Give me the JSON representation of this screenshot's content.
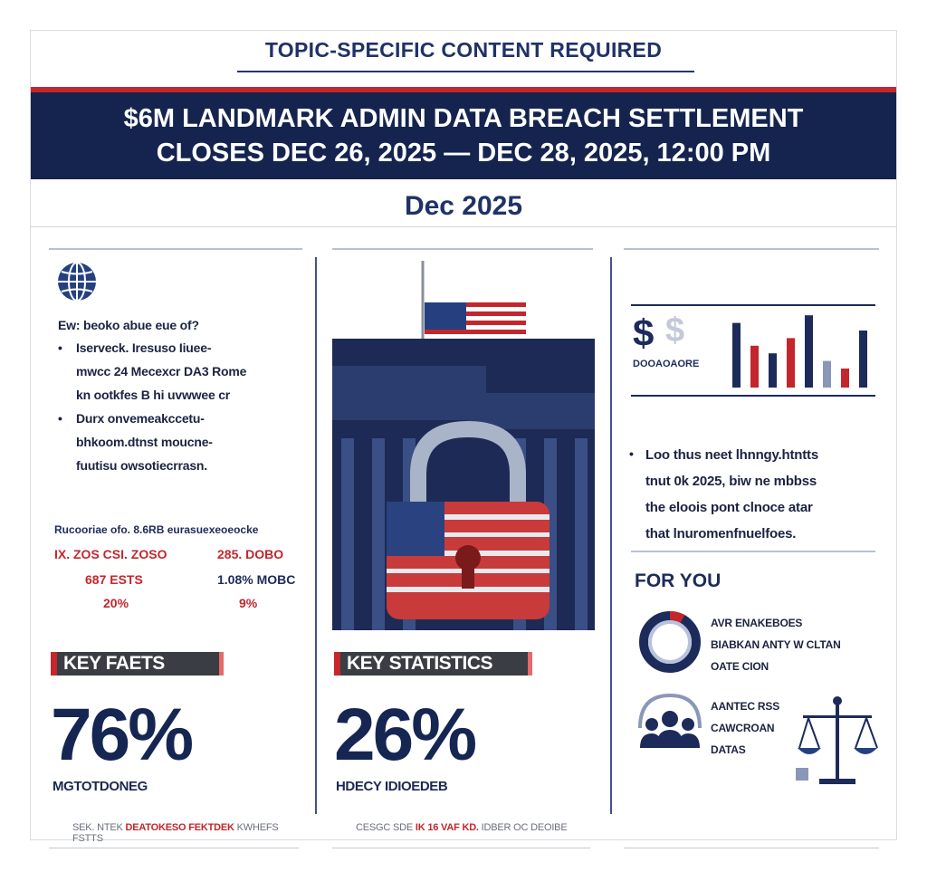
{
  "header": {
    "banner": "TOPIC-SPECIFIC CONTENT REQUIRED",
    "headline_line1": "$6M LANDMARK ADMIN DATA BREACH SETTLEMENT",
    "headline_line2": "CLOSES DEC 26, 2025 — DEC 28, 2025, 12:00 PM",
    "date": "Dec 2025"
  },
  "colors": {
    "navy": "#15244f",
    "red": "#c8262d",
    "text_navy": "#1f3268"
  },
  "left_column": {
    "icon": "globe-icon",
    "intro_heading": "Ew: beoko abue eue of?",
    "bullets": [
      "Iserveck. Iresuso Iiuee-\nmwcc 24 Mecexcr DA3 Rome\nkn ootkfes B hi uvwwee cr",
      "Durx onvemeakccetu-\nbhkoom.dtnst moucne-\nfuutisu owsotiecrrasn."
    ],
    "stats_header": "Rucooriae ofo. 8.6RB eurasuexeoeocke",
    "stats": [
      {
        "label": "IX. ZOS CSI. ZOSO",
        "style": "red"
      },
      {
        "label": "285. DOBO",
        "style": "red"
      },
      {
        "label": "687 ESTS",
        "style": "red"
      },
      {
        "label": "1.08% MOBC",
        "style": "navy"
      },
      {
        "label": "20%",
        "style": "red"
      },
      {
        "label": "9%",
        "style": "red"
      }
    ],
    "key_label": "KEY FAETS",
    "big_number": "76%",
    "sub_label": "MGTOTDONEG",
    "footnote_plain": "SEK. NTEK ",
    "footnote_red": "DEATOKESO FEKTDEK ",
    "footnote_tail": "KWHEFS FSTTS"
  },
  "middle_column": {
    "image_desc_icon": "padlock-flag-icon",
    "key_label": "KEY STATISTICS",
    "big_number": "26%",
    "sub_label": "HDECY IDIOEDEB",
    "footnote_plain": "CESGC SDE ",
    "footnote_red": "IK 16 VAF KD. ",
    "footnote_tail": "IDBER OC DEOIBE"
  },
  "right_column": {
    "chart_caption": "DOOAOAORE",
    "chart_bars": [
      {
        "color": "#1c2b5a",
        "value": 0.85
      },
      {
        "color": "#c3262c",
        "value": 0.55
      },
      {
        "color": "#1c2b5a",
        "value": 0.45
      },
      {
        "color": "#c3262c",
        "value": 0.65
      },
      {
        "color": "#1c2b5a",
        "value": 0.95
      },
      {
        "color": "#8a97b8",
        "value": 0.35
      },
      {
        "color": "#c3262c",
        "value": 0.25
      },
      {
        "color": "#1c2b5a",
        "value": 0.75
      }
    ],
    "bullet": "Loo thus neet lhnngy.htntts\ntnut 0k 2025, biw ne mbbss\nthe eloois pont clnoce atar\nthat lnuromenfnuelfoes.",
    "for_you": "FOR YOU",
    "donut_fraction": 0.08,
    "item1": "AVR ENAKEBOES\nBIABKAN ANTY W CLTAN\nOATE CION",
    "item2": "AANTEC RSS\nCAWCROAN\nDATAS"
  }
}
